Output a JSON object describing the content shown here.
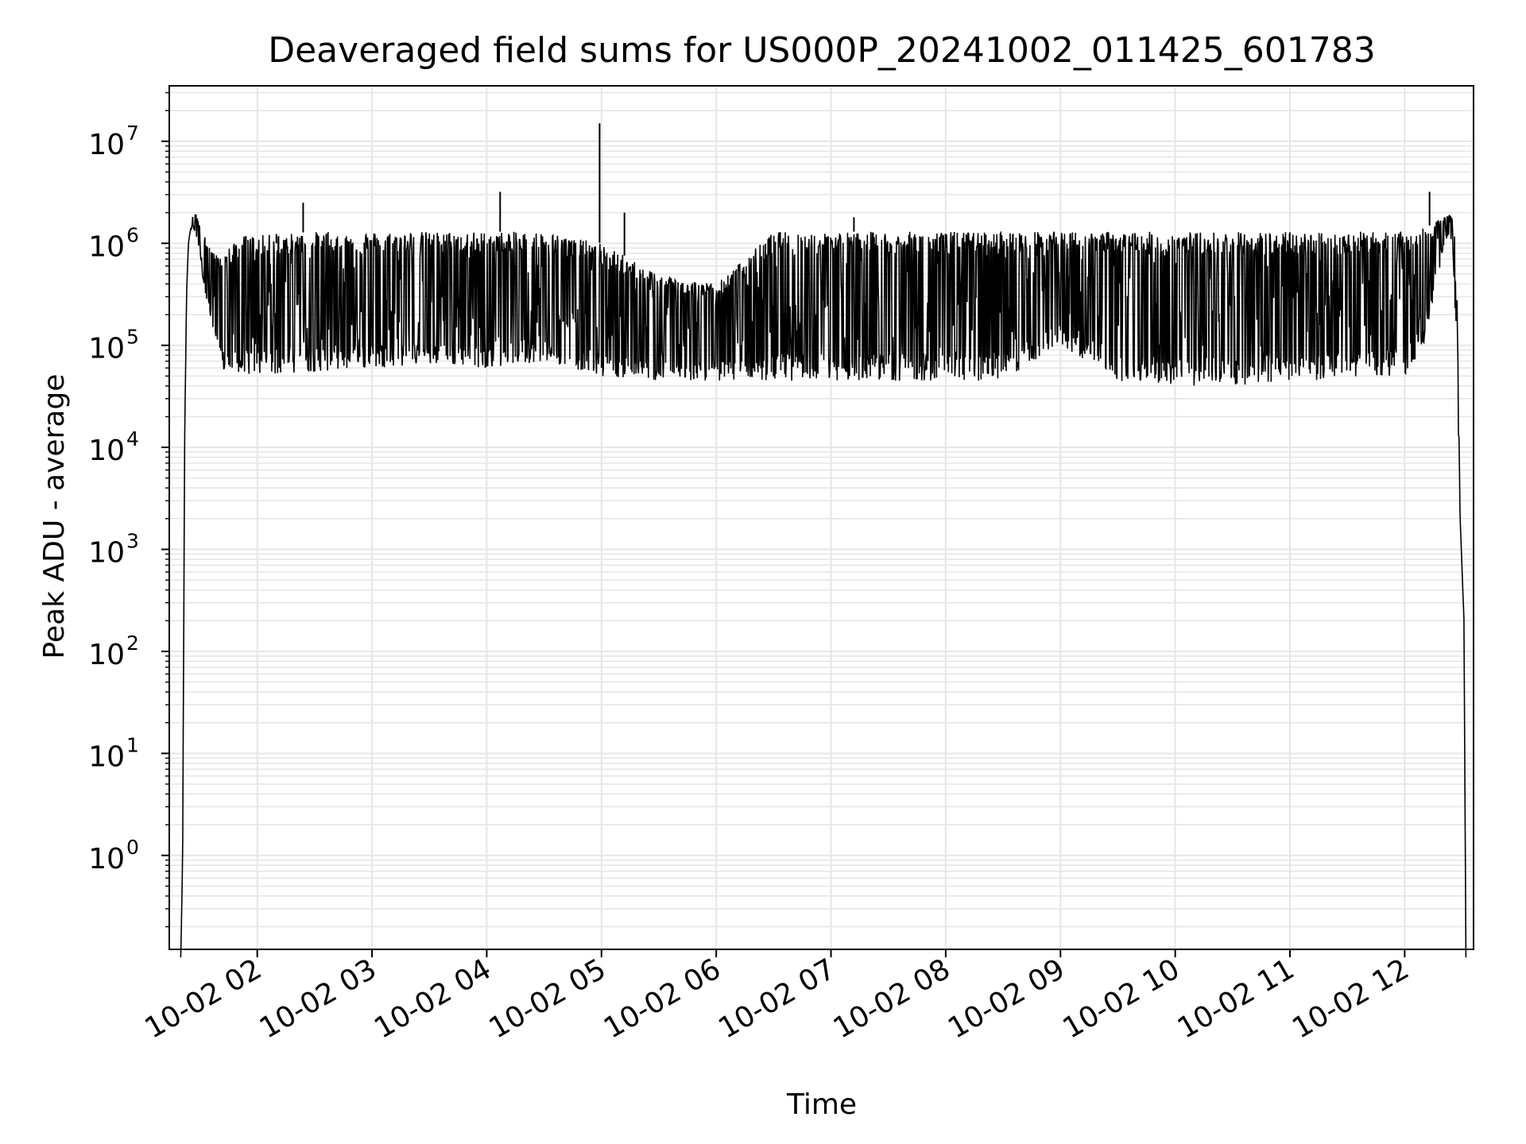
{
  "chart_data": {
    "type": "line",
    "title": "Deaveraged field sums for US000P_20241002_011425_601783",
    "xlabel": "Time",
    "ylabel": "Peak ADU - average",
    "y_scale": "log",
    "ylim": [
      0.12,
      35000000
    ],
    "xlim": [
      "2024-10-02 01:14",
      "2024-10-02 12:36"
    ],
    "grid": true,
    "line_color": "#000000",
    "grid_color": "#e6e6e6",
    "x_ticks": [
      {
        "value": "2024-10-02 02:00",
        "label": "10-02 02"
      },
      {
        "value": "2024-10-02 03:00",
        "label": "10-02 03"
      },
      {
        "value": "2024-10-02 04:00",
        "label": "10-02 04"
      },
      {
        "value": "2024-10-02 05:00",
        "label": "10-02 05"
      },
      {
        "value": "2024-10-02 06:00",
        "label": "10-02 06"
      },
      {
        "value": "2024-10-02 07:00",
        "label": "10-02 07"
      },
      {
        "value": "2024-10-02 08:00",
        "label": "10-02 08"
      },
      {
        "value": "2024-10-02 09:00",
        "label": "10-02 09"
      },
      {
        "value": "2024-10-02 10:00",
        "label": "10-02 10"
      },
      {
        "value": "2024-10-02 11:00",
        "label": "10-02 11"
      },
      {
        "value": "2024-10-02 12:00",
        "label": "10-02 12"
      }
    ],
    "y_ticks": [
      {
        "value": 1,
        "base": "10",
        "exp": "0"
      },
      {
        "value": 10,
        "base": "10",
        "exp": "1"
      },
      {
        "value": 100,
        "base": "10",
        "exp": "2"
      },
      {
        "value": 1000,
        "base": "10",
        "exp": "3"
      },
      {
        "value": 10000,
        "base": "10",
        "exp": "4"
      },
      {
        "value": 100000,
        "base": "10",
        "exp": "5"
      },
      {
        "value": 1000000,
        "base": "10",
        "exp": "6"
      },
      {
        "value": 10000000,
        "base": "10",
        "exp": "7"
      }
    ],
    "series": [
      {
        "x": [
          "2024-10-02 01:20",
          "2024-10-02 01:21",
          "2024-10-02 01:22",
          "2024-10-02 01:23",
          "2024-10-02 01:24",
          "2024-10-02 01:26",
          "2024-10-02 01:28",
          "2024-10-02 01:30",
          "2024-10-02 01:32",
          "2024-10-02 01:35",
          "2024-10-02 01:38",
          "2024-10-02 01:41",
          "2024-10-02 01:44",
          "2024-10-02 01:48",
          "2024-10-02 01:52",
          "2024-10-02 02:00",
          "2024-10-02 02:30",
          "2024-10-02 03:00",
          "2024-10-02 03:30",
          "2024-10-02 04:00",
          "2024-10-02 04:30",
          "2024-10-02 05:00",
          "2024-10-02 05:30",
          "2024-10-02 06:00",
          "2024-10-02 06:30",
          "2024-10-02 07:00",
          "2024-10-02 07:30",
          "2024-10-02 08:00",
          "2024-10-02 08:30",
          "2024-10-02 09:00",
          "2024-10-02 09:30",
          "2024-10-02 10:00",
          "2024-10-02 10:30",
          "2024-10-02 11:00",
          "2024-10-02 11:30",
          "2024-10-02 12:00",
          "2024-10-02 12:10",
          "2024-10-02 12:16",
          "2024-10-02 12:20",
          "2024-10-02 12:23",
          "2024-10-02 12:25",
          "2024-10-02 12:27",
          "2024-10-02 12:29",
          "2024-10-02 12:31",
          "2024-10-02 12:32"
        ],
        "low": [
          0.1,
          1,
          10000,
          300000,
          1000000,
          1500000,
          1200000,
          700000,
          400000,
          200000,
          100000,
          60000,
          50000,
          50000,
          50000,
          50000,
          55000,
          60000,
          65000,
          60000,
          70000,
          50000,
          45000,
          45000,
          45000,
          45000,
          45000,
          45000,
          45000,
          100000,
          45000,
          40000,
          40000,
          45000,
          45000,
          50000,
          100000,
          300000,
          800000,
          1200000,
          1000000,
          100000,
          2000,
          200,
          0.1
        ],
        "high": [
          0.1,
          1,
          10000,
          300000,
          1000000,
          1800000,
          2000000,
          1500000,
          1200000,
          1000000,
          800000,
          700000,
          900000,
          1000000,
          1200000,
          1200000,
          1300000,
          1300000,
          1300000,
          1300000,
          1300000,
          1000000,
          500000,
          400000,
          1300000,
          1300000,
          1300000,
          1300000,
          1300000,
          1300000,
          1300000,
          1300000,
          1300000,
          1300000,
          1300000,
          1300000,
          1400000,
          1600000,
          1800000,
          2000000,
          1800000,
          1000000,
          2000,
          200,
          0.1
        ]
      }
    ],
    "spikes": [
      {
        "x": "2024-10-02 02:10",
        "y": 1000000
      },
      {
        "x": "2024-10-02 02:24",
        "y": 2500000
      },
      {
        "x": "2024-10-02 04:07",
        "y": 3200000
      },
      {
        "x": "2024-10-02 04:59",
        "y": 15000000
      },
      {
        "x": "2024-10-02 05:12",
        "y": 2000000
      },
      {
        "x": "2024-10-02 07:12",
        "y": 1800000
      },
      {
        "x": "2024-10-02 12:13",
        "y": 3200000
      }
    ]
  }
}
